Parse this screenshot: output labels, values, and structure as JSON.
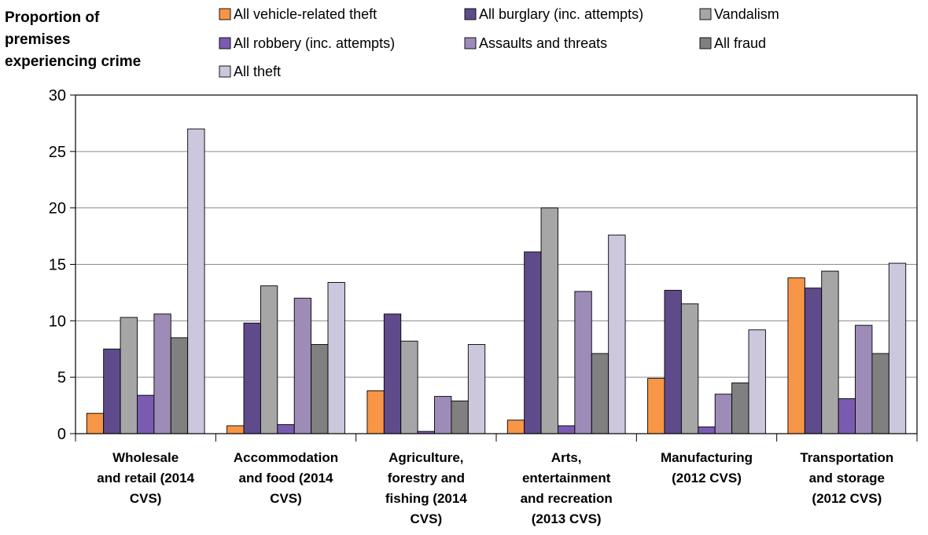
{
  "chart_data": {
    "type": "bar",
    "ylabel": [
      "Proportion of",
      "premises",
      "experiencing crime"
    ],
    "ylim": [
      0,
      30
    ],
    "yticks": [
      0,
      5,
      10,
      15,
      20,
      25,
      30
    ],
    "grid": true,
    "legend_position": "top",
    "categories": [
      [
        "Wholesale",
        "and retail (2014",
        "CVS)"
      ],
      [
        "Accommodation",
        "and food (2014",
        "CVS)"
      ],
      [
        "Agriculture,",
        "forestry and",
        "fishing (2014",
        "CVS)"
      ],
      [
        "Arts,",
        "entertainment",
        "and recreation",
        "(2013 CVS)"
      ],
      [
        "Manufacturing",
        "(2012 CVS)"
      ],
      [
        "Transportation",
        "and storage",
        "(2012 CVS)"
      ]
    ],
    "series": [
      {
        "name": "All vehicle-related theft",
        "color": "#F79646",
        "values": [
          1.8,
          0.7,
          3.8,
          1.2,
          4.9,
          13.8
        ]
      },
      {
        "name": "All burglary (inc. attempts)",
        "color": "#5F4B8B",
        "values": [
          7.5,
          9.8,
          10.6,
          16.1,
          12.7,
          12.9
        ]
      },
      {
        "name": "Vandalism",
        "color": "#A6A6A6",
        "values": [
          10.3,
          13.1,
          8.2,
          20.0,
          11.5,
          14.4
        ]
      },
      {
        "name": "All robbery (inc. attempts)",
        "color": "#7B5BB2",
        "values": [
          3.4,
          0.8,
          0.2,
          0.7,
          0.6,
          3.1
        ]
      },
      {
        "name": "Assaults and threats",
        "color": "#9D8BB8",
        "values": [
          10.6,
          12.0,
          3.3,
          12.6,
          3.5,
          9.6
        ]
      },
      {
        "name": "All fraud",
        "color": "#808080",
        "values": [
          8.5,
          7.9,
          2.9,
          7.1,
          4.5,
          7.1
        ]
      },
      {
        "name": "All theft",
        "color": "#CDC7DE",
        "values": [
          27.0,
          13.4,
          7.9,
          17.6,
          9.2,
          15.1
        ]
      }
    ]
  }
}
